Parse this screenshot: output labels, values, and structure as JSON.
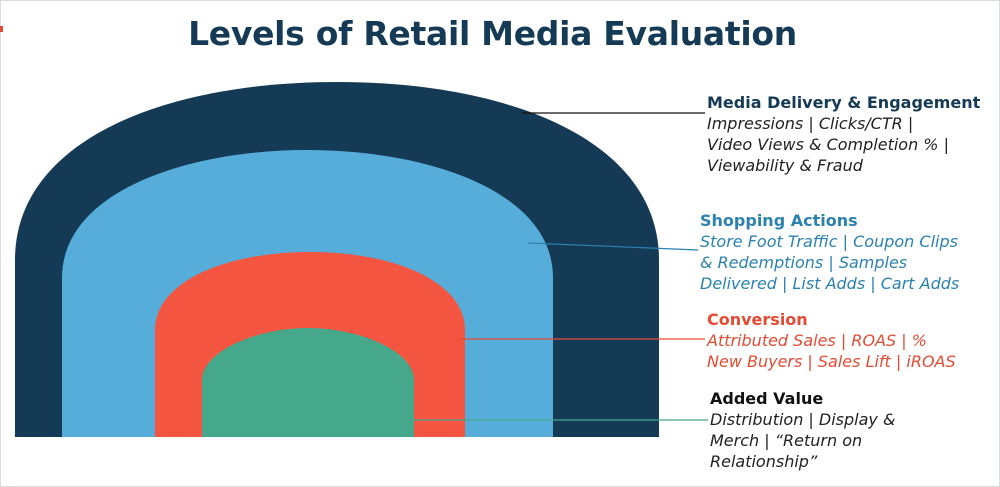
{
  "title": "Levels of Retail Media Evaluation",
  "colors": {
    "navy": "#153a56",
    "blue": "#57add9",
    "red": "#f45540",
    "green": "#46a88b",
    "title": "#153a56"
  },
  "levels": [
    {
      "heading": "Media Delivery & Engagement",
      "lines": [
        "Impressions | Clicks/CTR |",
        "Video Views & Completion % |",
        "Viewability & Fraud"
      ],
      "color": "#153a56"
    },
    {
      "heading": "Shopping Actions",
      "lines": [
        "Store Foot Traffic | Coupon Clips",
        "& Redemptions | Samples",
        "Delivered | List Adds | Cart Adds"
      ],
      "color": "#2b82b0"
    },
    {
      "heading": "Conversion",
      "lines": [
        "Attributed Sales | ROAS | %",
        "New Buyers | Sales Lift | iROAS"
      ],
      "color": "#e64a33"
    },
    {
      "heading": "Added Value",
      "lines": [
        "Distribution | Display &",
        "Merch | “Return on",
        "Relationship”"
      ],
      "color": "#111111"
    }
  ]
}
